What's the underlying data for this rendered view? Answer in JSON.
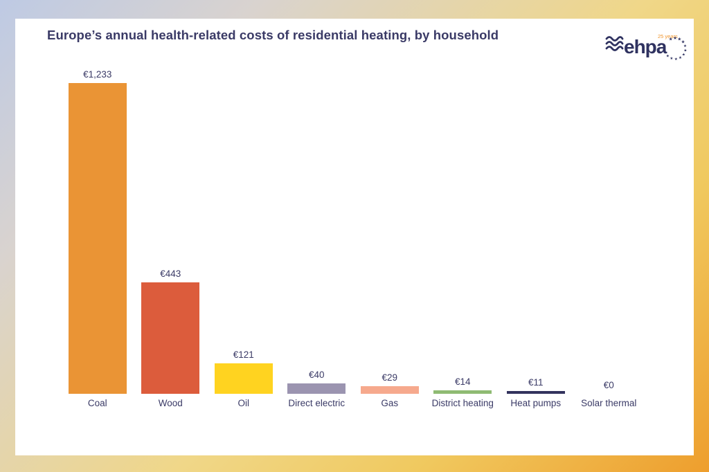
{
  "header": {
    "title": "Europe’s annual health-related costs of residential heating, by household"
  },
  "logo": {
    "wordmark": "ehpa",
    "tagline": "25 years"
  },
  "colors": {
    "title_text": "#3A3A66",
    "label_text": "#3A3A66",
    "card_bg": "#FFFFFF",
    "frame_gradient": [
      "#BECAE4",
      "#F0D788",
      "#EE9E2D"
    ],
    "logo_navy": "#2F3260",
    "logo_orange": "#F0962E"
  },
  "chart_data": {
    "type": "bar",
    "title": "Europe’s annual health-related costs of residential heating, by household",
    "categories": [
      "Coal",
      "Wood",
      "Oil",
      "Direct electric",
      "Gas",
      "District heating",
      "Heat pumps",
      "Solar thermal"
    ],
    "values": [
      1233,
      443,
      121,
      40,
      29,
      14,
      11,
      0
    ],
    "value_labels": [
      "€1,233",
      "€443",
      "€121",
      "€40",
      "€29",
      "€14",
      "€11",
      "€0"
    ],
    "bar_colors": [
      "#EA9435",
      "#DC5C3C",
      "#FFD320",
      "#9B94B0",
      "#F6A98D",
      "#8FBB73",
      "#33335D",
      "#33335D"
    ],
    "ylim": [
      0,
      1233
    ],
    "xlabel": "",
    "ylabel": "",
    "grid": false,
    "legend": "none"
  }
}
